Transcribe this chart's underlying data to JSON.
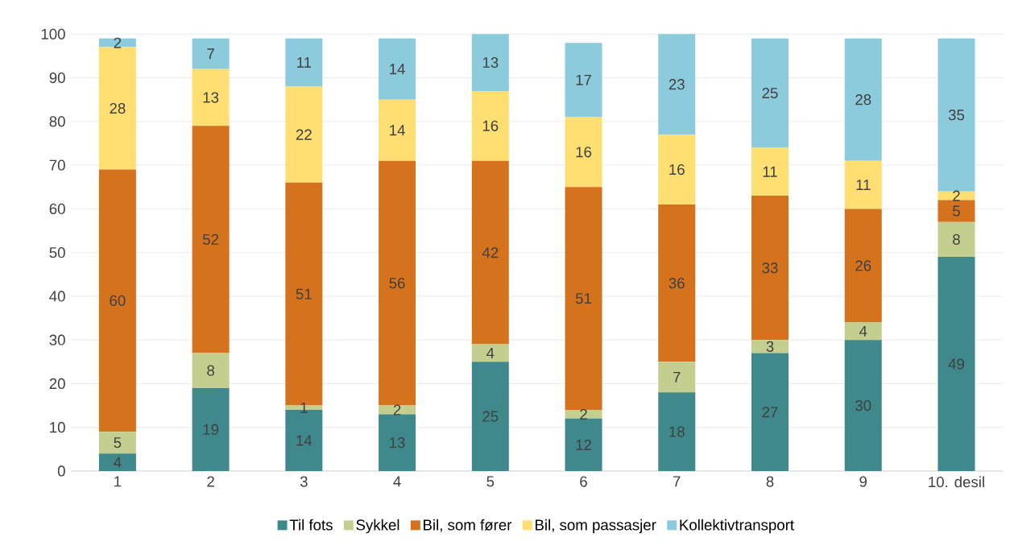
{
  "chart_data": {
    "type": "bar",
    "stacked": true,
    "categories": [
      "1",
      "2",
      "3",
      "4",
      "5",
      "6",
      "7",
      "8",
      "9",
      "10. desil"
    ],
    "series": [
      {
        "name": "Til fots",
        "color": "#3f888b",
        "values": [
          4,
          19,
          14,
          13,
          25,
          12,
          18,
          27,
          30,
          49
        ]
      },
      {
        "name": "Sykkel",
        "color": "#c4cf8f",
        "values": [
          5,
          8,
          1,
          2,
          4,
          2,
          7,
          3,
          4,
          8
        ]
      },
      {
        "name": "Bil, som fører",
        "color": "#d4721e",
        "values": [
          60,
          52,
          51,
          56,
          42,
          51,
          36,
          33,
          26,
          5
        ]
      },
      {
        "name": "Bil, som passasjer",
        "color": "#ffdf71",
        "values": [
          28,
          13,
          22,
          14,
          16,
          16,
          16,
          11,
          11,
          2
        ]
      },
      {
        "name": "Kollektivtransport",
        "color": "#8ccbdc",
        "values": [
          2,
          7,
          11,
          14,
          13,
          17,
          23,
          25,
          28,
          35
        ]
      }
    ],
    "ylim": [
      0,
      100
    ],
    "yticks": [
      0,
      10,
      20,
      30,
      40,
      50,
      60,
      70,
      80,
      90,
      100
    ],
    "grid": "y",
    "legend": "bottom",
    "data_labels": true
  }
}
